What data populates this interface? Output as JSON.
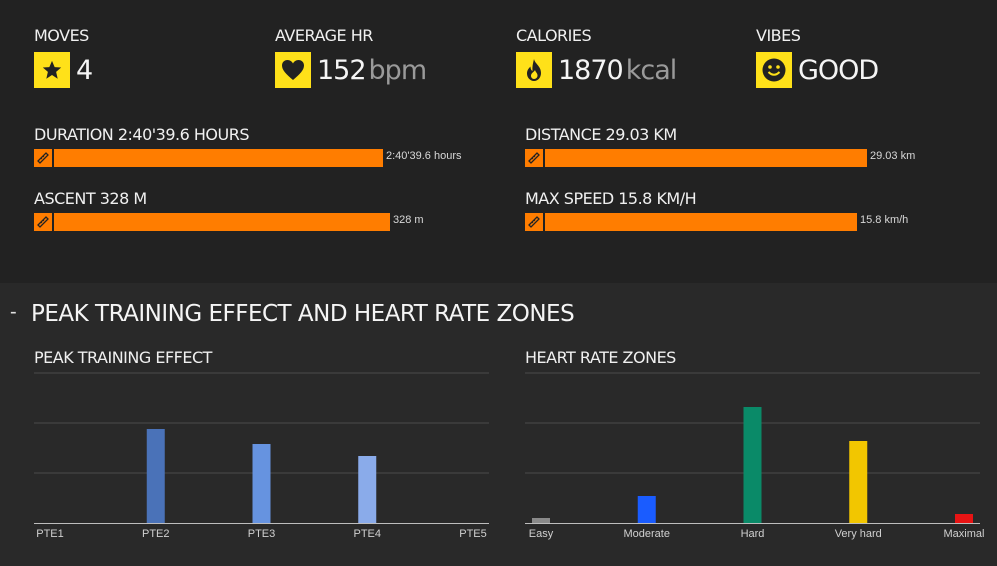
{
  "stats": [
    {
      "label": "MOVES",
      "value": "4",
      "unit": "",
      "icon": "star-icon"
    },
    {
      "label": "AVERAGE HR",
      "value": "152",
      "unit": "bpm",
      "icon": "heart-icon"
    },
    {
      "label": "CALORIES",
      "value": "1870",
      "unit": "kcal",
      "icon": "flame-icon"
    },
    {
      "label": "VIBES",
      "value": "GOOD",
      "unit": "",
      "icon": "smiley-icon"
    }
  ],
  "bars": {
    "duration": {
      "label": "DURATION 2:40'39.6 HOURS",
      "value": "2:40'39.6 hours",
      "fill": 0.94
    },
    "distance": {
      "label": "DISTANCE 29.03 KM",
      "value": "29.03 km",
      "fill": 0.92
    },
    "ascent": {
      "label": "ASCENT 328 M",
      "value": "328 m",
      "fill": 0.96
    },
    "max_speed": {
      "label": "MAX SPEED 15.8 KM/H",
      "value": "15.8 km/h",
      "fill": 0.89
    }
  },
  "section": {
    "toggle": "-",
    "title": "PEAK TRAINING EFFECT AND HEART RATE ZONES"
  },
  "chart_data": [
    {
      "type": "bar",
      "title": "PEAK TRAINING EFFECT",
      "categories": [
        "PTE1",
        "PTE2",
        "PTE3",
        "PTE4",
        "PTE5"
      ],
      "values": [
        0,
        94,
        79,
        67,
        0
      ],
      "colors": [
        "#3f6fd1",
        "#4a72b8",
        "#6693e0",
        "#8aabea",
        "#a8c2f0"
      ],
      "ylim": [
        0,
        150
      ],
      "grid": true
    },
    {
      "type": "bar",
      "title": "HEART RATE ZONES",
      "categories": [
        "Easy",
        "Moderate",
        "Hard",
        "Very hard",
        "Maximal"
      ],
      "values": [
        5,
        27,
        116,
        82,
        9
      ],
      "colors": [
        "#8a8a8a",
        "#1a5cff",
        "#0a8a68",
        "#f2c600",
        "#e81414"
      ],
      "ylim": [
        0,
        150
      ],
      "grid": true
    }
  ]
}
